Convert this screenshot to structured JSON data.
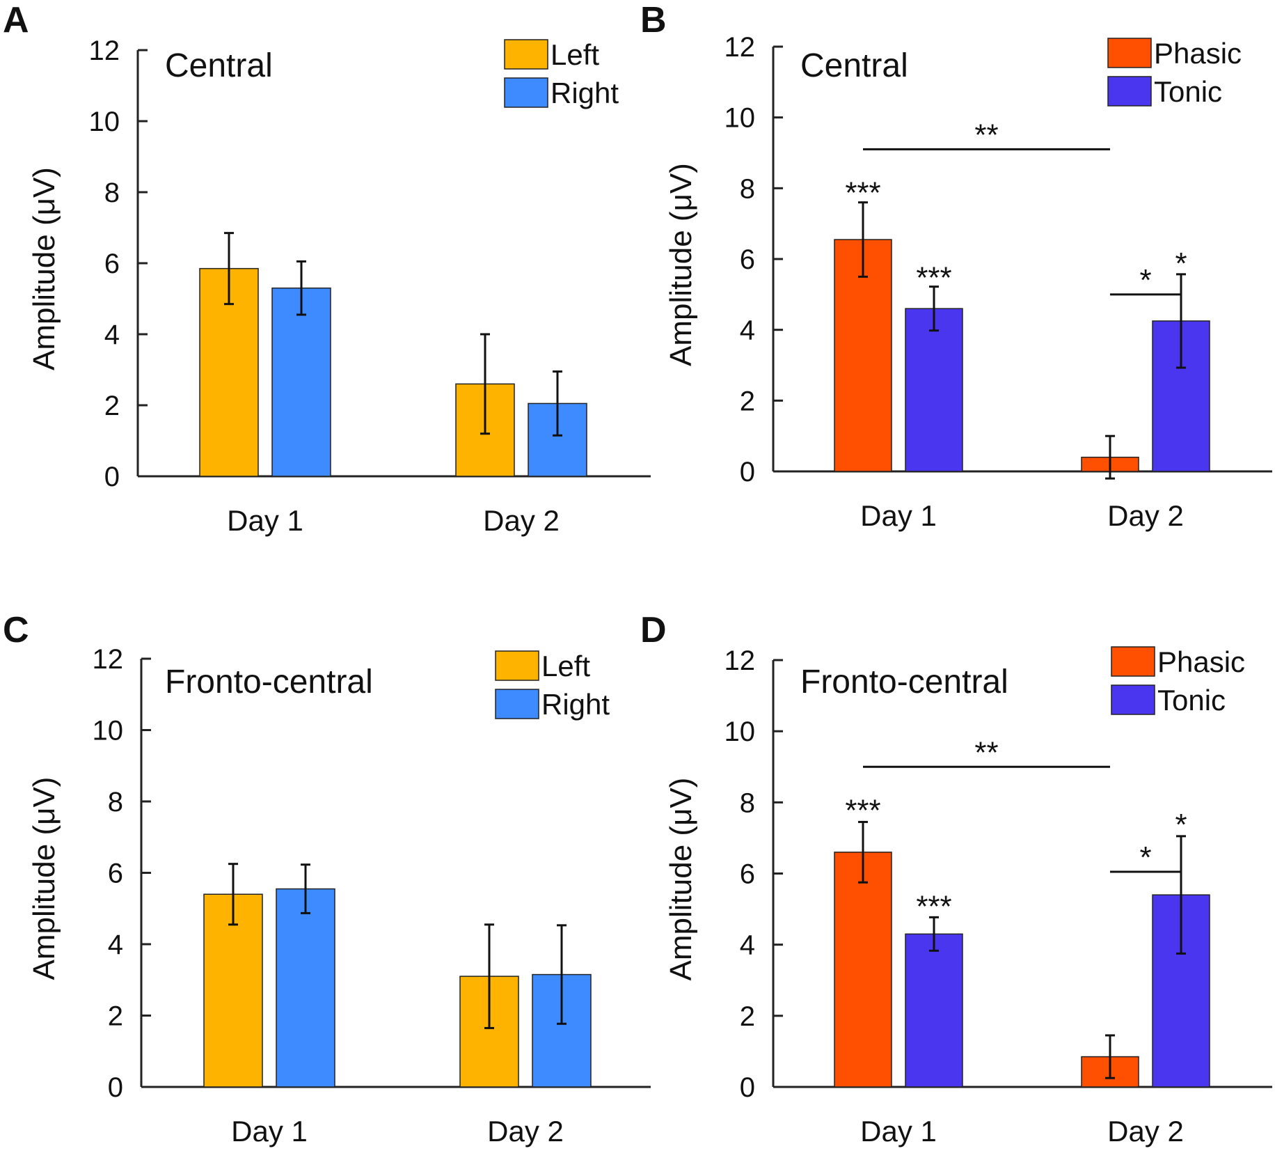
{
  "chart_data": [
    {
      "panel": "A",
      "type": "bar",
      "title": "Central",
      "ylabel": "Amplitude (μV)",
      "ylim": [
        0,
        12
      ],
      "yticks": [
        0,
        2,
        4,
        6,
        8,
        10,
        12
      ],
      "categories": [
        "Day 1",
        "Day 2"
      ],
      "legend_position": "top-right",
      "series": [
        {
          "name": "Left",
          "color": "#FDB300",
          "values": [
            5.85,
            2.6
          ],
          "errors": [
            1.0,
            1.4
          ]
        },
        {
          "name": "Right",
          "color": "#3D8BFF",
          "values": [
            5.3,
            2.05
          ],
          "errors": [
            0.75,
            0.9
          ]
        }
      ],
      "annotations": []
    },
    {
      "panel": "B",
      "type": "bar",
      "title": "Central",
      "ylabel": "Amplitude (μV)",
      "ylim": [
        0,
        12
      ],
      "yticks": [
        0,
        2,
        4,
        6,
        8,
        10,
        12
      ],
      "categories": [
        "Day 1",
        "Day 2"
      ],
      "legend_position": "top-right",
      "series": [
        {
          "name": "Phasic",
          "color": "#FF4F00",
          "values": [
            6.55,
            0.4
          ],
          "errors": [
            1.05,
            0.6
          ]
        },
        {
          "name": "Tonic",
          "color": "#4B36F0",
          "values": [
            4.6,
            4.25
          ],
          "errors": [
            0.62,
            1.32
          ]
        }
      ],
      "annotations": [
        {
          "text": "**",
          "type": "bracket",
          "from": [
            0,
            0
          ],
          "to": [
            1,
            0
          ],
          "y": 9.1
        },
        {
          "text": "***",
          "type": "bar",
          "bar": [
            0,
            0
          ],
          "y": 7.9
        },
        {
          "text": "***",
          "type": "bar",
          "bar": [
            0,
            1
          ],
          "y": 5.5
        },
        {
          "text": "*",
          "type": "bracket",
          "from": [
            1,
            0
          ],
          "to": [
            1,
            1
          ],
          "y": 5.0
        },
        {
          "text": "*",
          "type": "bar",
          "bar": [
            1,
            1
          ],
          "y": 5.9
        }
      ]
    },
    {
      "panel": "C",
      "type": "bar",
      "title": "Fronto-central",
      "ylabel": "Amplitude (μV)",
      "ylim": [
        0,
        12
      ],
      "yticks": [
        0,
        2,
        4,
        6,
        8,
        10,
        12
      ],
      "categories": [
        "Day 1",
        "Day 2"
      ],
      "legend_position": "top-right",
      "series": [
        {
          "name": "Left",
          "color": "#FDB300",
          "values": [
            5.4,
            3.1
          ],
          "errors": [
            0.85,
            1.45
          ]
        },
        {
          "name": "Right",
          "color": "#3D8BFF",
          "values": [
            5.55,
            3.15
          ],
          "errors": [
            0.68,
            1.38
          ]
        }
      ],
      "annotations": []
    },
    {
      "panel": "D",
      "type": "bar",
      "title": "Fronto-central",
      "ylabel": "Amplitude (μV)",
      "ylim": [
        0,
        12
      ],
      "yticks": [
        0,
        2,
        4,
        6,
        8,
        10,
        12
      ],
      "categories": [
        "Day 1",
        "Day 2"
      ],
      "legend_position": "top-right",
      "series": [
        {
          "name": "Phasic",
          "color": "#FF4F00",
          "values": [
            6.6,
            0.85
          ],
          "errors": [
            0.85,
            0.6
          ]
        },
        {
          "name": "Tonic",
          "color": "#4B36F0",
          "values": [
            4.3,
            5.4
          ],
          "errors": [
            0.47,
            1.65
          ]
        }
      ],
      "annotations": [
        {
          "text": "**",
          "type": "bracket",
          "from": [
            0,
            0
          ],
          "to": [
            1,
            0
          ],
          "y": 9.0
        },
        {
          "text": "***",
          "type": "bar",
          "bar": [
            0,
            0
          ],
          "y": 7.8
        },
        {
          "text": "***",
          "type": "bar",
          "bar": [
            0,
            1
          ],
          "y": 5.1
        },
        {
          "text": "*",
          "type": "bracket",
          "from": [
            1,
            0
          ],
          "to": [
            1,
            1
          ],
          "y": 6.05
        },
        {
          "text": "*",
          "type": "bar",
          "bar": [
            1,
            1
          ],
          "y": 7.4
        }
      ]
    }
  ]
}
